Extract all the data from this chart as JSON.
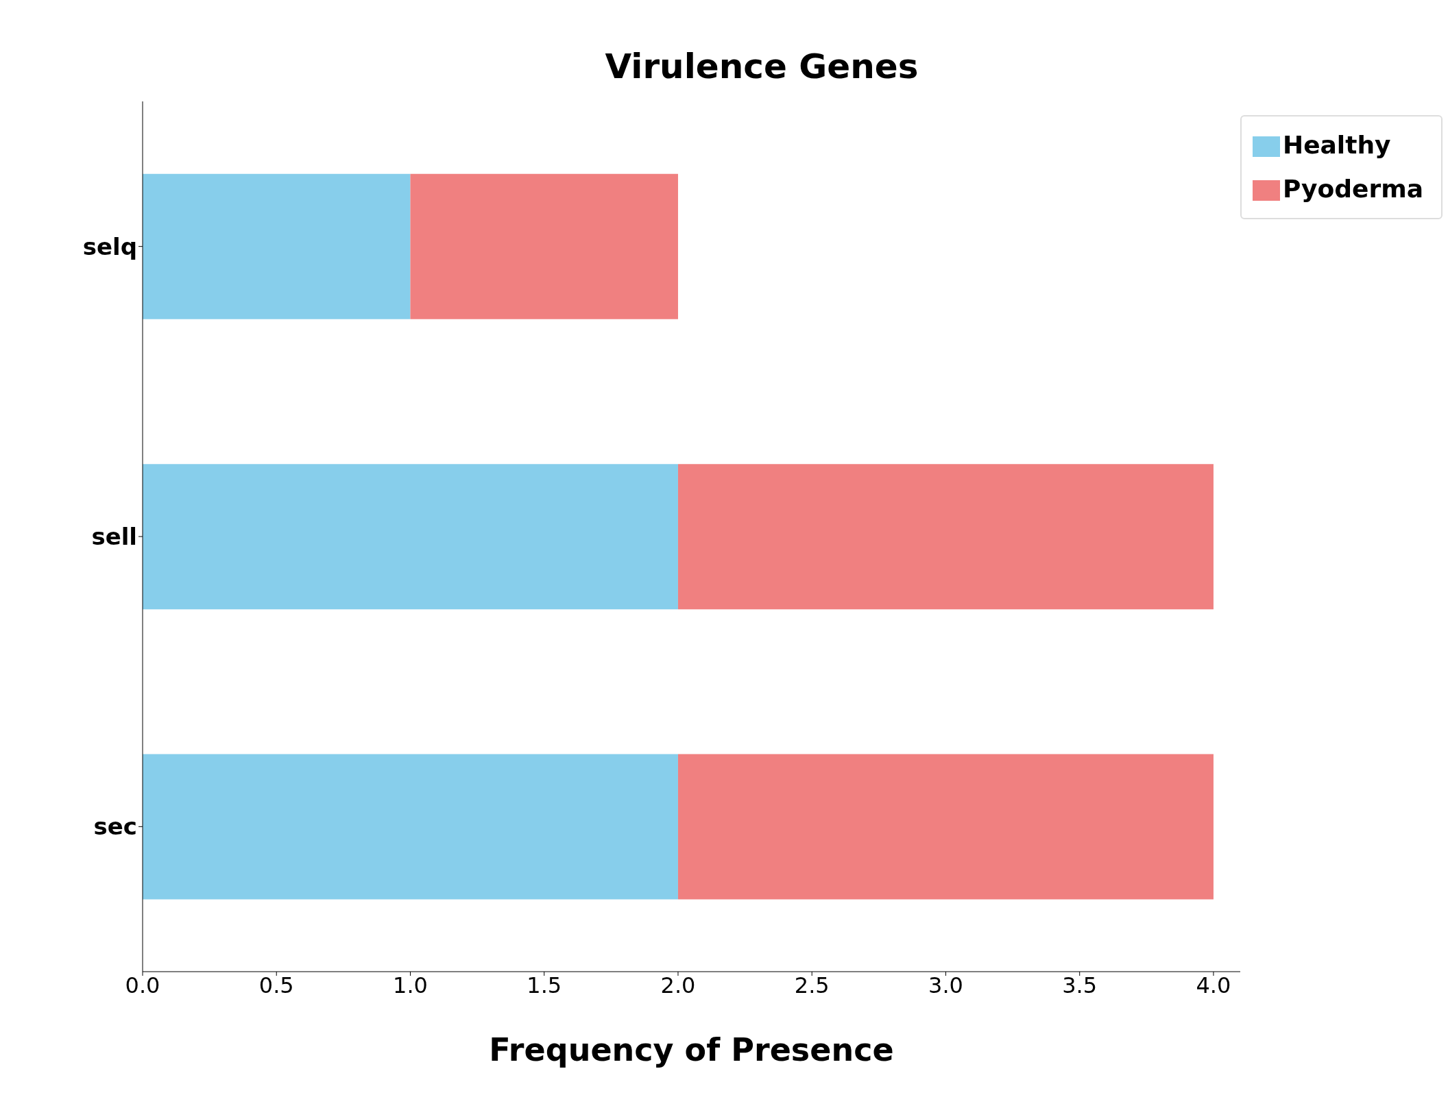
{
  "chart_data": {
    "type": "bar",
    "orientation": "horizontal",
    "stacked": true,
    "title": "Virulence Genes",
    "xlabel": "Frequency of Presence",
    "categories": [
      "selq",
      "sell",
      "sec"
    ],
    "series": [
      {
        "name": "Healthy",
        "color": "#87ceeb",
        "values": [
          1,
          2,
          2
        ]
      },
      {
        "name": "Pyoderma",
        "color": "#f08080",
        "values": [
          1,
          2,
          2
        ]
      }
    ],
    "xlim": [
      0,
      4.1
    ],
    "xticks": [
      {
        "value": 0,
        "label": "0.0"
      },
      0.5,
      {
        "value": 1,
        "label": "1.0"
      },
      1.5,
      {
        "value": 2,
        "label": "2.0"
      },
      2.5,
      {
        "value": 3,
        "label": "3.0"
      },
      3.5,
      {
        "value": 4,
        "label": "4.0"
      }
    ],
    "grid": false,
    "legend": "top right"
  }
}
